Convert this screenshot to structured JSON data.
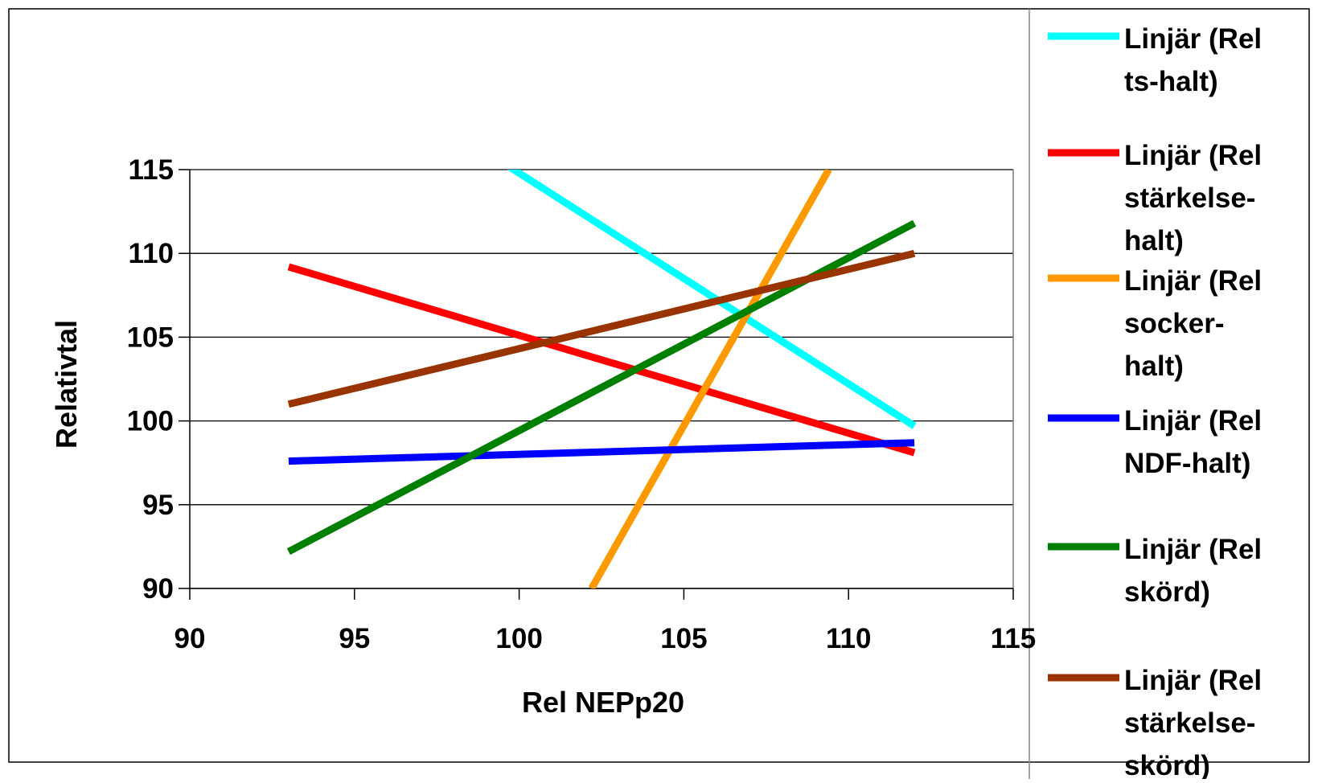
{
  "chart_data": {
    "type": "line",
    "title": "",
    "xlabel": "Rel NEPp20",
    "ylabel": "Relativtal",
    "xlim": [
      90,
      115
    ],
    "ylim": [
      90,
      115
    ],
    "x_ticks": [
      "90",
      "95",
      "100",
      "105",
      "110",
      "115"
    ],
    "y_ticks": [
      "90",
      "95",
      "100",
      "105",
      "110",
      "115"
    ],
    "grid": "horizontal",
    "legend_position": "right",
    "series": [
      {
        "name": "Linjär (Rel ts-halt)",
        "legend_lines": [
          "Linjär (Rel",
          "ts-halt)"
        ],
        "color": "#00FFFF",
        "points": [
          [
            93,
            123.6
          ],
          [
            112,
            99.7
          ]
        ]
      },
      {
        "name": "Linjär (Rel stärkelse-halt)",
        "legend_lines": [
          "Linjär (Rel",
          "stärkelse-",
          "halt)"
        ],
        "color": "#FF0000",
        "points": [
          [
            93,
            109.2
          ],
          [
            112,
            98.1
          ]
        ]
      },
      {
        "name": "Linjär (Rel socker-halt)",
        "legend_lines": [
          "Linjär (Rel",
          "socker-",
          "halt)"
        ],
        "color": "#FF9900",
        "points": [
          [
            102.2,
            90
          ],
          [
            109.4,
            115
          ]
        ]
      },
      {
        "name": "Linjär (Rel NDF-halt)",
        "legend_lines": [
          "Linjär (Rel",
          "NDF-halt)"
        ],
        "color": "#0000FF",
        "points": [
          [
            93,
            97.6
          ],
          [
            112,
            98.7
          ]
        ]
      },
      {
        "name": "Linjär (Rel skörd)",
        "legend_lines": [
          "Linjär (Rel",
          "skörd)"
        ],
        "color": "#008000",
        "points": [
          [
            93,
            92.2
          ],
          [
            112,
            111.8
          ]
        ]
      },
      {
        "name": "Linjär (Rel stärkelse-skörd)",
        "legend_lines": [
          "Linjär (Rel",
          "stärkelse-",
          "skörd)"
        ],
        "color": "#993300",
        "points": [
          [
            93,
            101
          ],
          [
            112,
            110
          ]
        ]
      }
    ]
  }
}
